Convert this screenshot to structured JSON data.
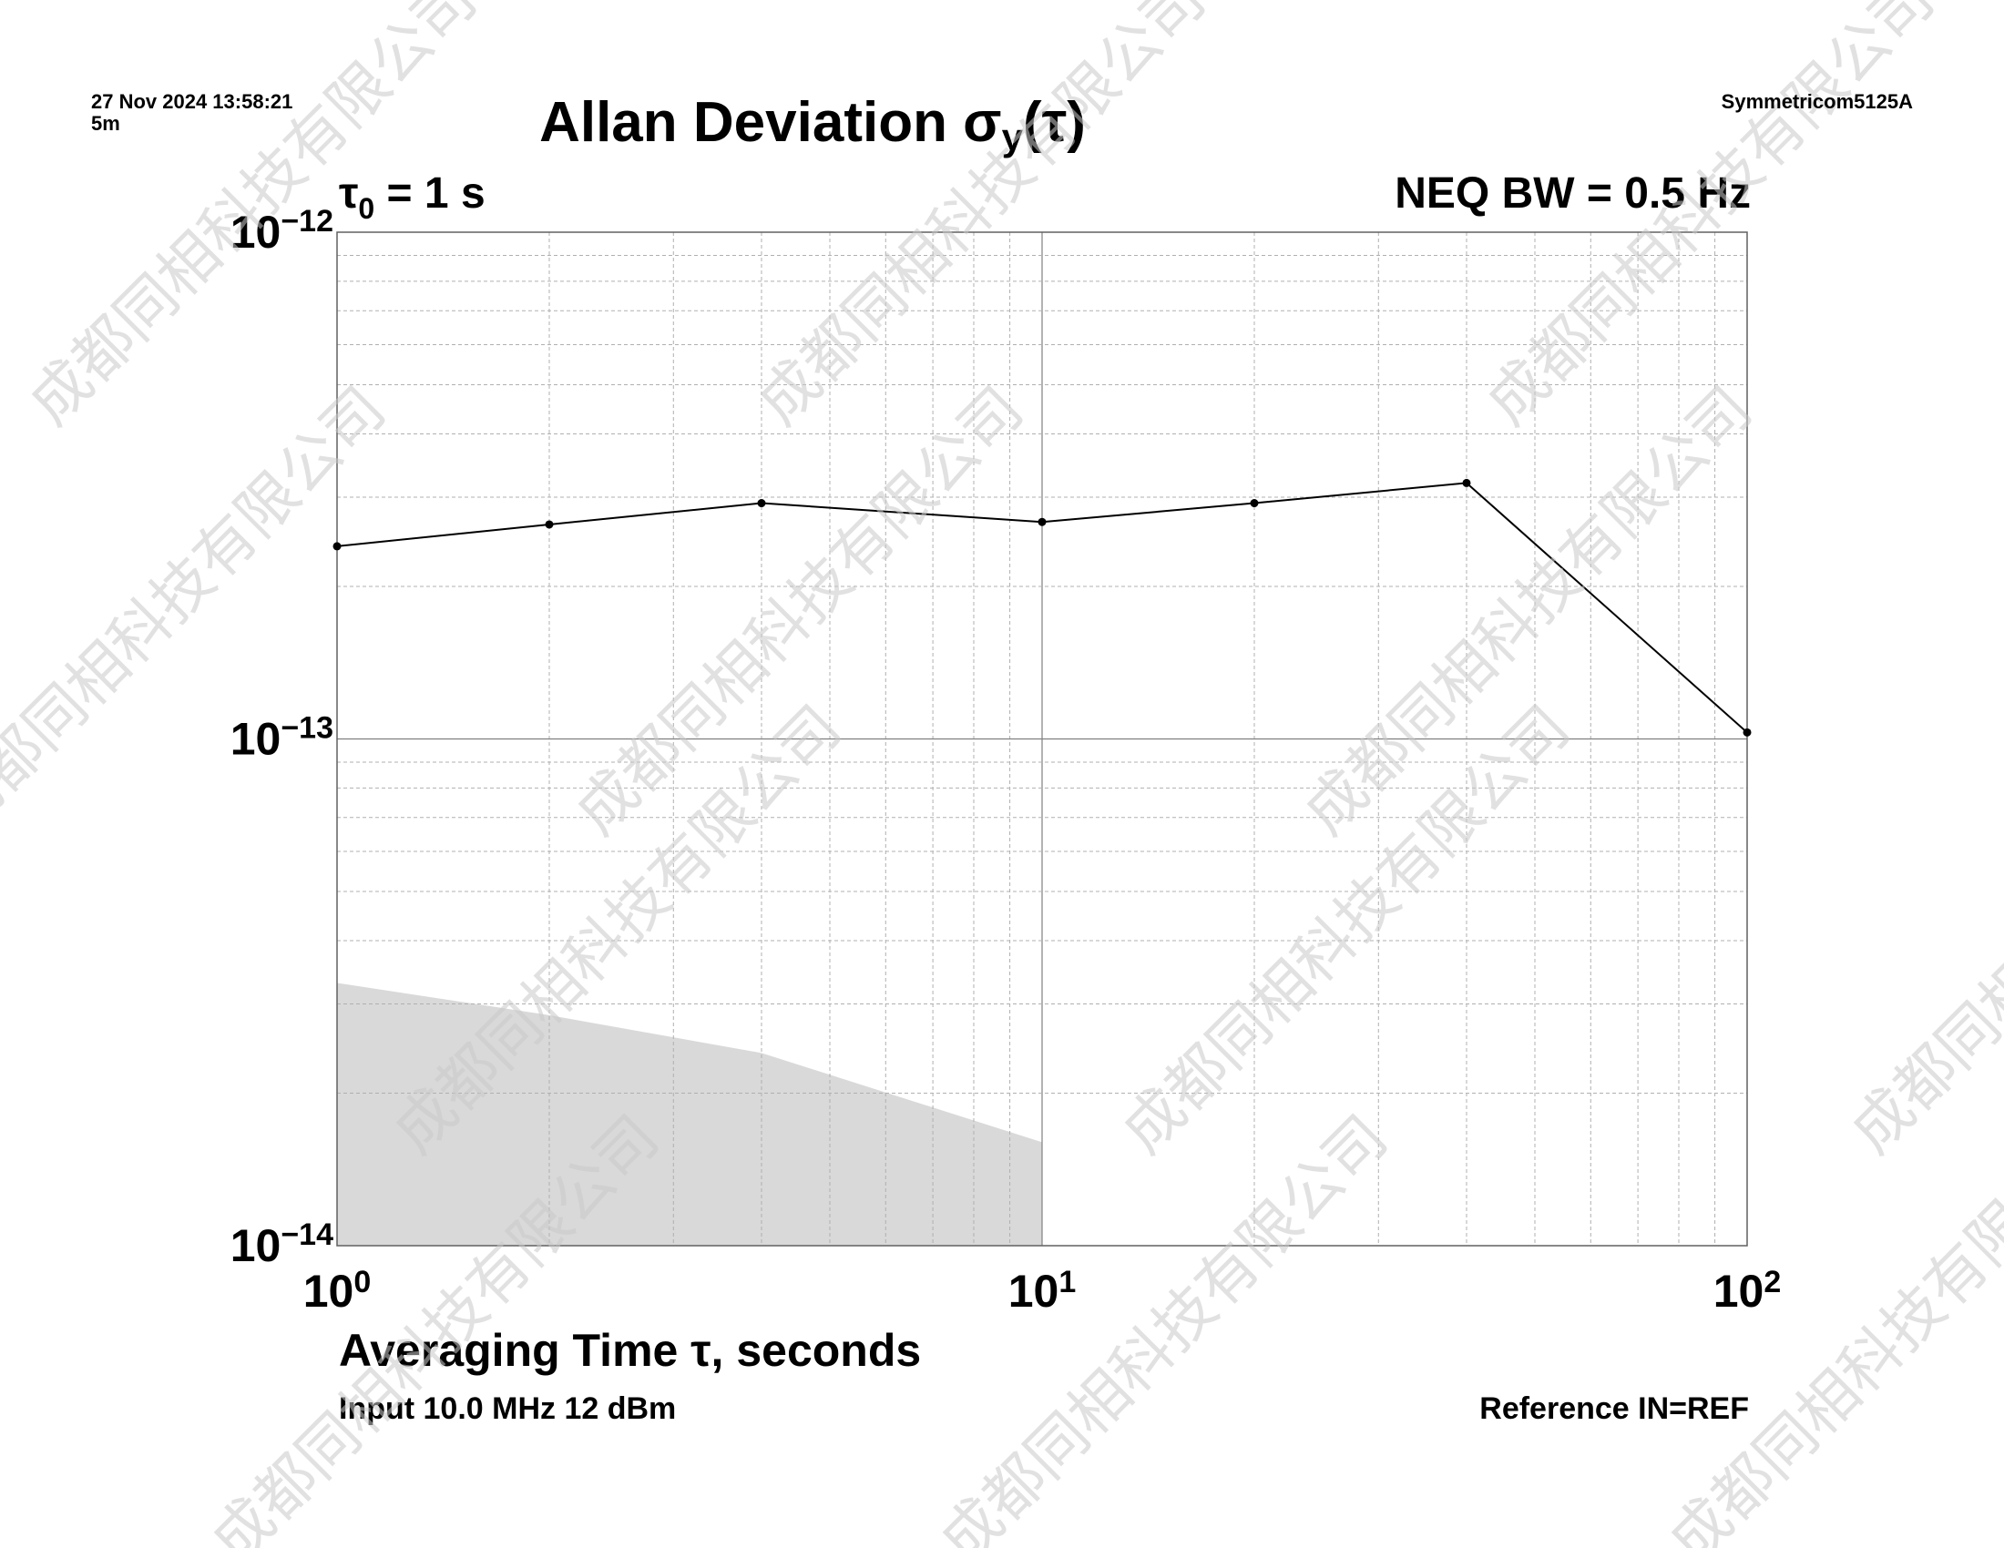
{
  "header": {
    "timestamp": "27 Nov 2024 13:58:21",
    "duration": "5m",
    "instrument": "Symmetricom5125A"
  },
  "footer": {
    "input": "Input 10.0 MHz 12 dBm",
    "reference": "Reference IN=REF"
  },
  "watermark": {
    "text": "成都同相科技有限公司",
    "color": "#c8c8c8"
  },
  "colors": {
    "line": "#000000",
    "grid_major": "#808080",
    "grid_minor": "#b0b0b0",
    "confidence_band": "#d9d9d9"
  },
  "chart_data": {
    "type": "line",
    "title": "Allan Deviation σy(τ)",
    "title_main": "Allan Deviation σ",
    "title_sub": "y",
    "title_arg": "(τ)",
    "tau0_label": "τ",
    "tau0_sub": "0",
    "tau0_value": " = 1 s",
    "bandwidth_label": "NEQ BW = 0.5 Hz",
    "xlabel": "Averaging Time τ, seconds",
    "ylabel": "",
    "xscale": "log",
    "yscale": "log",
    "xlim": [
      1,
      100
    ],
    "ylim": [
      1e-14,
      1e-12
    ],
    "grid": true,
    "x_ticks": [
      {
        "base": "10",
        "exp": "0",
        "value": 1
      },
      {
        "base": "10",
        "exp": "1",
        "value": 10
      },
      {
        "base": "10",
        "exp": "2",
        "value": 100
      }
    ],
    "y_ticks": [
      {
        "base": "10",
        "exp": "−12",
        "value": 1e-12
      },
      {
        "base": "10",
        "exp": "−13",
        "value": 1e-13
      },
      {
        "base": "10",
        "exp": "−14",
        "value": 1e-14
      }
    ],
    "series": [
      {
        "x": [
          1,
          2,
          4,
          10,
          20,
          40,
          100
        ],
        "y": [
          2.4e-13,
          2.65e-13,
          2.92e-13,
          2.68e-13,
          2.92e-13,
          3.2e-13,
          1.03e-13
        ]
      }
    ],
    "shaded_region": {
      "x": [
        1,
        2,
        4,
        10
      ],
      "y": [
        3.3e-14,
        2.85e-14,
        2.4e-14,
        1.6e-14
      ]
    }
  }
}
